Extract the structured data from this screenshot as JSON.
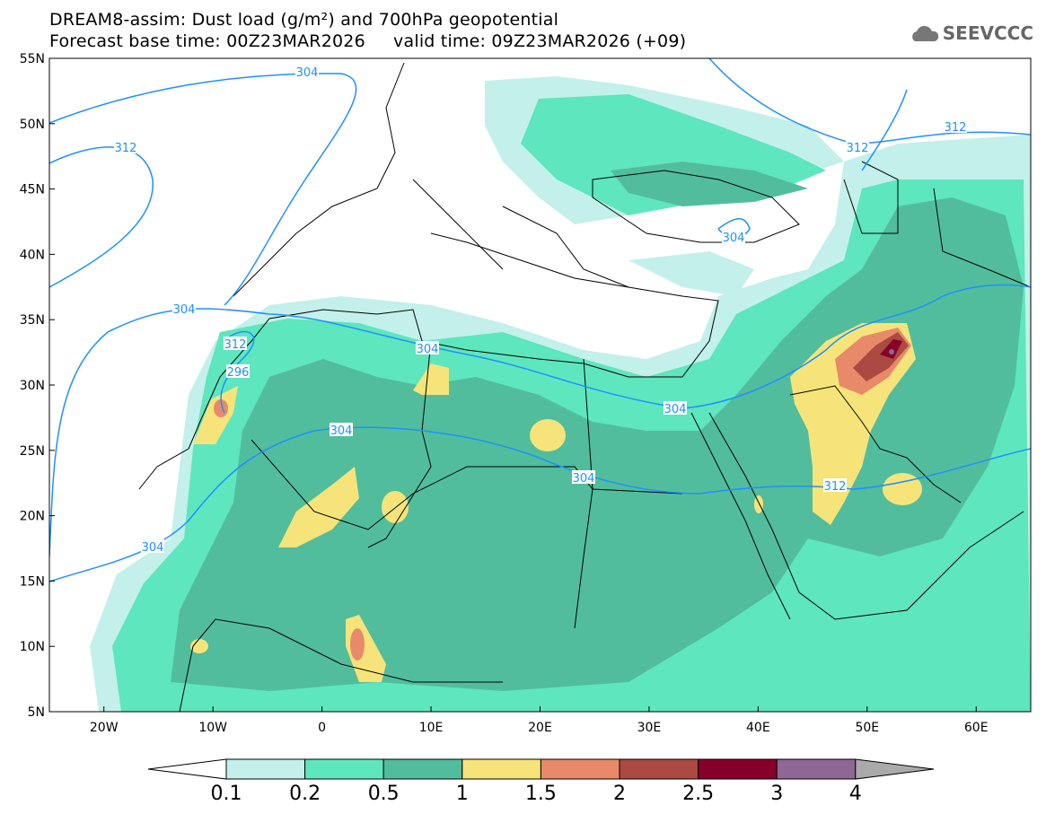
{
  "title": "DREAM8-assim: Dust load (g/m²) and 700hPa geopotential",
  "subtitle": "Forecast base time: 00Z23MAR2026     valid time: 09Z23MAR2026 (+09)",
  "logo": "SEEVCCC",
  "lat_labels": [
    "55N",
    "50N",
    "45N",
    "40N",
    "35N",
    "30N",
    "25N",
    "20N",
    "15N",
    "10N",
    "5N"
  ],
  "lon_labels": [
    "20W",
    "10W",
    "0",
    "10E",
    "20E",
    "30E",
    "40E",
    "50E",
    "60E"
  ],
  "contour_labels": [
    "304",
    "312",
    "304",
    "312",
    "296",
    "304",
    "304",
    "304",
    "304",
    "304",
    "312",
    "312",
    "312",
    "304"
  ],
  "legend": {
    "labels": [
      "0.1",
      "0.2",
      "0.5",
      "1",
      "1.5",
      "2",
      "2.5",
      "3",
      "4"
    ],
    "colors": [
      "#c3f0ea",
      "#5ee6be",
      "#52bd9c",
      "#f6e47a",
      "#e8896a",
      "#ab4a40",
      "#87002a",
      "#8e6795"
    ]
  }
}
